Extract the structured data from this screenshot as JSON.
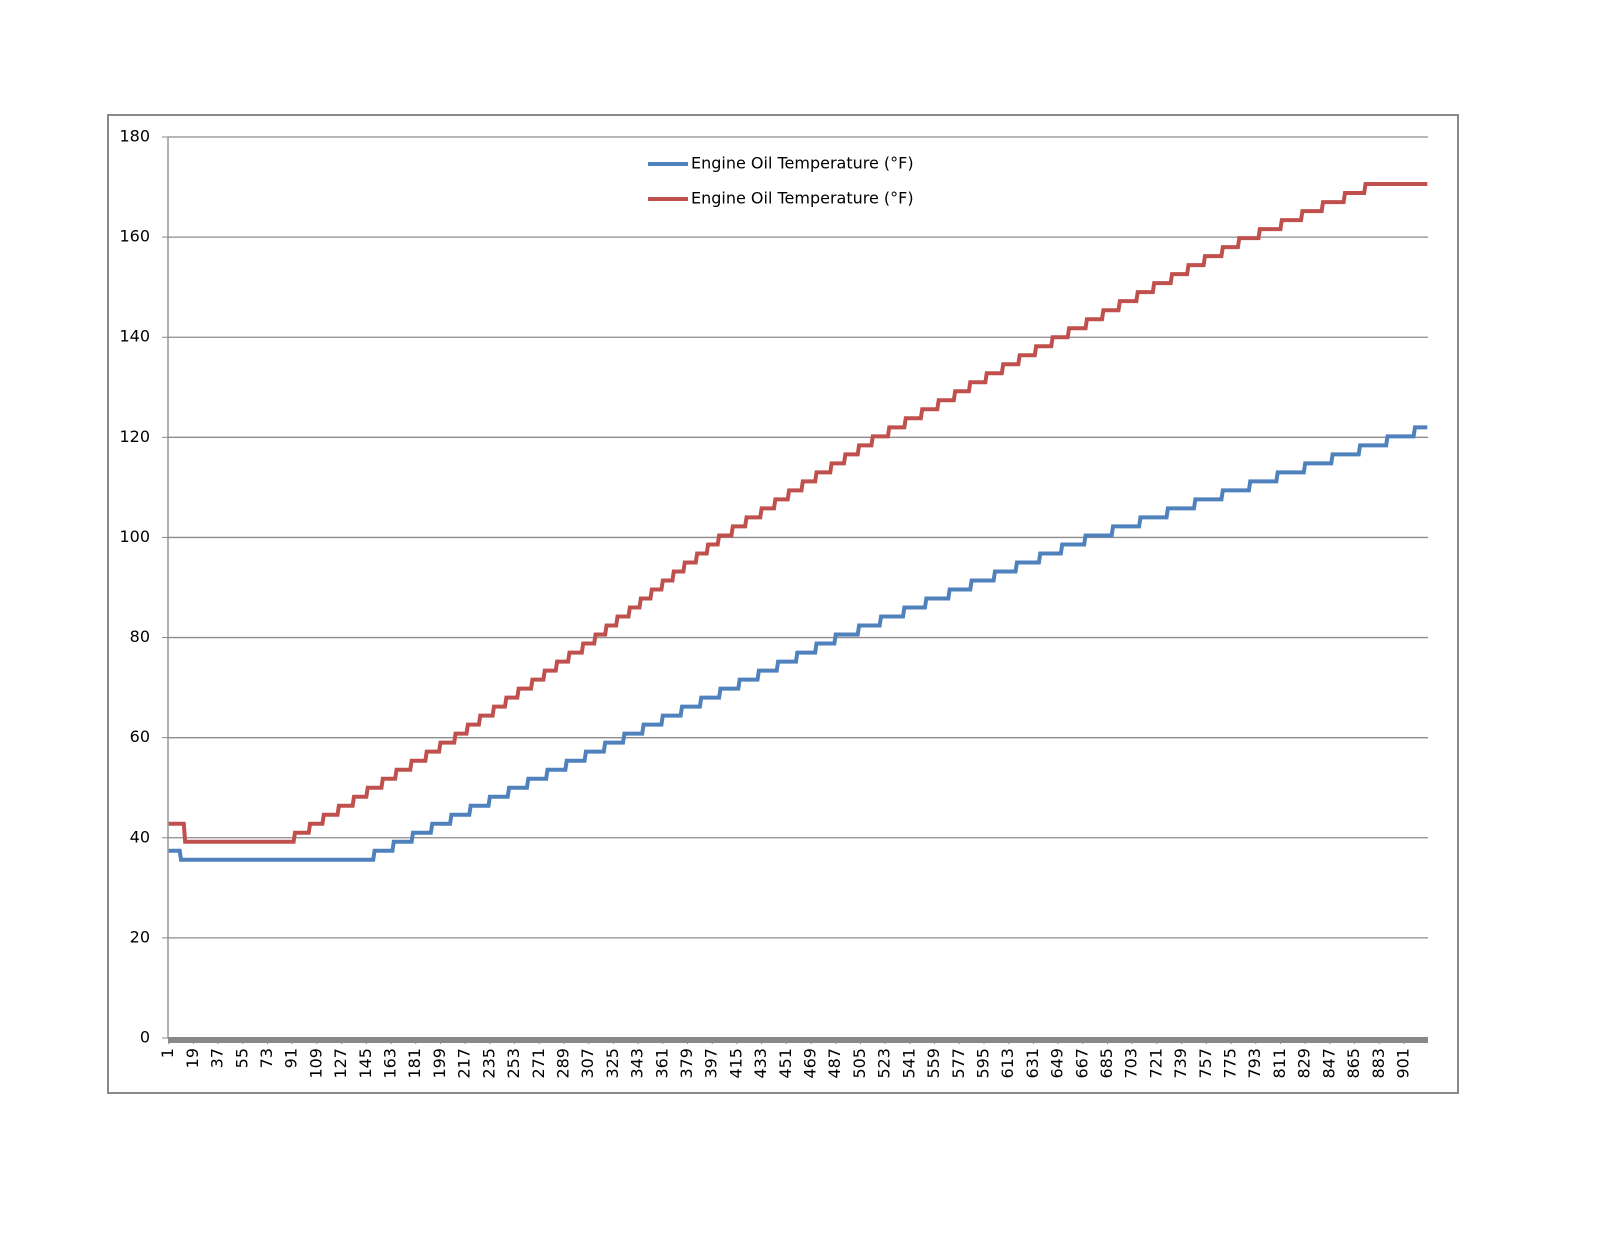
{
  "chart_data": {
    "type": "line",
    "series": [
      {
        "name": "Engine Oil Temperature (°F)",
        "color": "#4f81bd",
        "x": [
          1,
          9,
          10,
          150,
          151,
          164,
          165,
          178,
          179,
          192,
          193,
          206,
          207,
          220,
          221,
          234,
          235,
          248,
          249,
          262,
          263,
          276,
          277,
          290,
          291,
          304,
          305,
          318,
          319,
          332,
          333,
          346,
          347,
          360,
          361,
          374,
          375,
          388,
          389,
          402,
          403,
          416,
          417,
          430,
          431,
          444,
          445,
          458,
          459,
          472,
          473,
          486,
          487,
          503,
          504,
          519,
          520,
          536,
          537,
          552,
          553,
          569,
          570,
          585,
          586,
          602,
          603,
          618,
          619,
          635,
          636,
          651,
          652,
          668,
          669,
          688,
          689,
          708,
          709,
          728,
          729,
          748,
          749,
          768,
          769,
          788,
          789,
          808,
          809,
          828,
          829,
          848,
          849,
          868,
          869,
          888,
          889,
          908,
          909,
          918
        ],
        "values": [
          37.4,
          37.4,
          35.6,
          35.6,
          37.4,
          37.4,
          39.2,
          39.2,
          41.0,
          41.0,
          42.8,
          42.8,
          44.6,
          44.6,
          46.4,
          46.4,
          48.2,
          48.2,
          50.0,
          50.0,
          51.8,
          51.8,
          53.6,
          53.6,
          55.4,
          55.4,
          57.2,
          57.2,
          59.0,
          59.0,
          60.8,
          60.8,
          62.6,
          62.6,
          64.4,
          64.4,
          66.2,
          66.2,
          68.0,
          68.0,
          69.8,
          69.8,
          71.6,
          71.6,
          73.4,
          73.4,
          75.2,
          75.2,
          77.0,
          77.0,
          78.8,
          78.8,
          80.6,
          80.6,
          82.4,
          82.4,
          84.2,
          84.2,
          86.0,
          86.0,
          87.8,
          87.8,
          89.6,
          89.6,
          91.4,
          91.4,
          93.2,
          93.2,
          95.0,
          95.0,
          96.8,
          96.8,
          98.6,
          98.6,
          100.4,
          100.4,
          102.2,
          102.2,
          104.0,
          104.0,
          105.8,
          105.8,
          107.6,
          107.6,
          109.4,
          109.4,
          111.2,
          111.2,
          113.0,
          113.0,
          114.8,
          114.8,
          116.6,
          116.6,
          118.4,
          118.4,
          120.2,
          120.2,
          122.0,
          122.0
        ]
      },
      {
        "name": "Engine Oil Temperature (°F)",
        "color": "#c0504d",
        "x": [
          1,
          12,
          13,
          92,
          93,
          103,
          104,
          113,
          114,
          124,
          125,
          135,
          136,
          145,
          146,
          156,
          157,
          166,
          167,
          177,
          178,
          188,
          189,
          198,
          199,
          209,
          210,
          218,
          219,
          227,
          228,
          237,
          238,
          246,
          247,
          255,
          256,
          265,
          266,
          274,
          275,
          283,
          284,
          292,
          293,
          302,
          303,
          311,
          312,
          319,
          320,
          327,
          328,
          336,
          337,
          344,
          345,
          352,
          353,
          360,
          361,
          368,
          369,
          376,
          377,
          385,
          386,
          393,
          394,
          401,
          402,
          411,
          412,
          421,
          422,
          432,
          433,
          442,
          443,
          452,
          453,
          462,
          463,
          472,
          473,
          483,
          484,
          493,
          494,
          503,
          504,
          513,
          514,
          525,
          526,
          537,
          538,
          549,
          550,
          561,
          562,
          573,
          574,
          584,
          585,
          596,
          597,
          608,
          609,
          620,
          621,
          632,
          633,
          644,
          645,
          656,
          657,
          669,
          670,
          681,
          682,
          693,
          694,
          706,
          707,
          718,
          719,
          731,
          732,
          743,
          744,
          755,
          756,
          768,
          769,
          780,
          781,
          795,
          796,
          811,
          812,
          826,
          827,
          841,
          842,
          857,
          858,
          872,
          873,
          918
        ],
        "values": [
          42.8,
          42.8,
          39.2,
          39.2,
          41.0,
          41.0,
          42.8,
          42.8,
          44.6,
          44.6,
          46.4,
          46.4,
          48.2,
          48.2,
          50.0,
          50.0,
          51.8,
          51.8,
          53.6,
          53.6,
          55.4,
          55.4,
          57.2,
          57.2,
          59.0,
          59.0,
          60.8,
          60.8,
          62.6,
          62.6,
          64.4,
          64.4,
          66.2,
          66.2,
          68.0,
          68.0,
          69.8,
          69.8,
          71.6,
          71.6,
          73.4,
          73.4,
          75.2,
          75.2,
          77.0,
          77.0,
          78.8,
          78.8,
          80.6,
          80.6,
          82.4,
          82.4,
          84.2,
          84.2,
          86.0,
          86.0,
          87.8,
          87.8,
          89.6,
          89.6,
          91.4,
          91.4,
          93.2,
          93.2,
          95.0,
          95.0,
          96.8,
          96.8,
          98.6,
          98.6,
          100.4,
          100.4,
          102.2,
          102.2,
          104.0,
          104.0,
          105.8,
          105.8,
          107.6,
          107.6,
          109.4,
          109.4,
          111.2,
          111.2,
          113.0,
          113.0,
          114.8,
          114.8,
          116.6,
          116.6,
          118.4,
          118.4,
          120.2,
          120.2,
          122.0,
          122.0,
          123.8,
          123.8,
          125.6,
          125.6,
          127.4,
          127.4,
          129.2,
          129.2,
          131.0,
          131.0,
          132.8,
          132.8,
          134.6,
          134.6,
          136.4,
          136.4,
          138.2,
          138.2,
          140.0,
          140.0,
          141.8,
          141.8,
          143.6,
          143.6,
          145.4,
          145.4,
          147.2,
          147.2,
          149.0,
          149.0,
          150.8,
          150.8,
          152.6,
          152.6,
          154.4,
          154.4,
          156.2,
          156.2,
          158.0,
          158.0,
          159.8,
          159.8,
          161.6,
          161.6,
          163.4,
          163.4,
          165.2,
          165.2,
          167.0,
          167.0,
          168.8,
          168.8,
          170.6,
          170.6
        ]
      }
    ],
    "xlim": [
      0.5,
      918.5
    ],
    "xticks": [
      1,
      19,
      37,
      55,
      73,
      91,
      109,
      127,
      145,
      163,
      181,
      199,
      217,
      235,
      253,
      271,
      289,
      307,
      325,
      343,
      361,
      379,
      397,
      415,
      433,
      451,
      469,
      487,
      505,
      523,
      541,
      559,
      577,
      595,
      613,
      631,
      649,
      667,
      685,
      703,
      721,
      739,
      757,
      775,
      793,
      811,
      829,
      847,
      865,
      883,
      901
    ],
    "ylim": [
      0,
      180
    ],
    "yticks": [
      0,
      20,
      40,
      60,
      80,
      100,
      120,
      140,
      160,
      180
    ],
    "grid": true,
    "legend": "top"
  }
}
